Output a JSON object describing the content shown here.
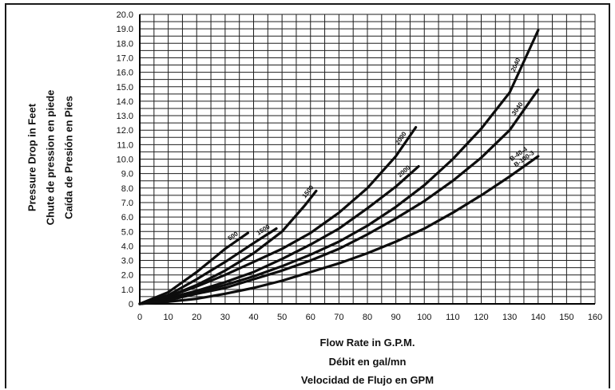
{
  "chart_data": {
    "type": "line",
    "ylabels": [
      "Pressure Drop in Feet",
      "Chute de pression en piede",
      "Caída de Presión en Pies"
    ],
    "xlabels": [
      "Flow Rate in G.P.M.",
      "Débit en gal/mn",
      "Velocidad de Flujo en GPM"
    ],
    "xlim": [
      0,
      160
    ],
    "ylim": [
      0,
      20
    ],
    "x_ticks": [
      0,
      10,
      20,
      30,
      40,
      50,
      60,
      70,
      80,
      90,
      100,
      110,
      120,
      130,
      140,
      150,
      160
    ],
    "y_ticks": [
      "0",
      "1.0",
      "2.0",
      "3.0",
      "4.0",
      "5.0",
      "6.0",
      "7.0",
      "8.0",
      "9.0",
      "10.0",
      "11.0",
      "12.0",
      "13.0",
      "14.0",
      "15.0",
      "16.0",
      "17.0",
      "18.0",
      "19.0",
      "20.0"
    ],
    "grid": true,
    "series": [
      {
        "name": "500",
        "x": [
          0,
          10,
          20,
          30,
          38
        ],
        "y": [
          0,
          0.8,
          2.2,
          3.8,
          4.9
        ]
      },
      {
        "name": "1500",
        "x": [
          0,
          10,
          20,
          30,
          40,
          48
        ],
        "y": [
          0,
          0.6,
          1.7,
          2.9,
          4.2,
          5.2
        ]
      },
      {
        "name": "1500",
        "x": [
          0,
          10,
          20,
          30,
          40,
          50,
          58,
          62
        ],
        "y": [
          0,
          0.5,
          1.3,
          2.3,
          3.5,
          5.0,
          6.8,
          7.8
        ]
      },
      {
        "name": "2000",
        "x": [
          0,
          10,
          20,
          30,
          40,
          50,
          60,
          70,
          80,
          90,
          97
        ],
        "y": [
          0,
          0.5,
          1.2,
          2.0,
          2.9,
          3.8,
          4.9,
          6.3,
          8.0,
          10.2,
          12.2
        ]
      },
      {
        "name": "2000",
        "x": [
          0,
          10,
          20,
          30,
          40,
          50,
          60,
          70,
          80,
          90,
          98
        ],
        "y": [
          0,
          0.4,
          0.9,
          1.5,
          2.2,
          3.1,
          4.1,
          5.2,
          6.6,
          8.1,
          9.5
        ]
      },
      {
        "name": "2040",
        "x": [
          0,
          10,
          20,
          30,
          40,
          50,
          60,
          70,
          80,
          90,
          100,
          110,
          120,
          130,
          140
        ],
        "y": [
          0,
          0.3,
          0.8,
          1.3,
          1.9,
          2.6,
          3.4,
          4.3,
          5.4,
          6.7,
          8.2,
          10.0,
          12.1,
          14.6,
          18.9
        ]
      },
      {
        "name": "3040",
        "x": [
          0,
          10,
          20,
          30,
          40,
          50,
          60,
          70,
          80,
          90,
          100,
          110,
          120,
          130,
          140
        ],
        "y": [
          0,
          0.25,
          0.7,
          1.1,
          1.7,
          2.3,
          3.0,
          3.8,
          4.8,
          5.9,
          7.1,
          8.5,
          10.1,
          12.0,
          14.8
        ]
      },
      {
        "name": "B-100-3 B-40-4",
        "x": [
          0,
          10,
          20,
          30,
          40,
          50,
          60,
          70,
          80,
          90,
          100,
          110,
          120,
          130,
          140
        ],
        "y": [
          0,
          0.15,
          0.35,
          0.7,
          1.1,
          1.6,
          2.2,
          2.8,
          3.5,
          4.3,
          5.2,
          6.3,
          7.5,
          8.8,
          10.2
        ]
      }
    ],
    "curve_labels": [
      "500",
      "1500",
      "1500",
      "2000",
      "2000",
      "2040",
      "3040",
      "B-100-3\nB-40-4"
    ]
  }
}
